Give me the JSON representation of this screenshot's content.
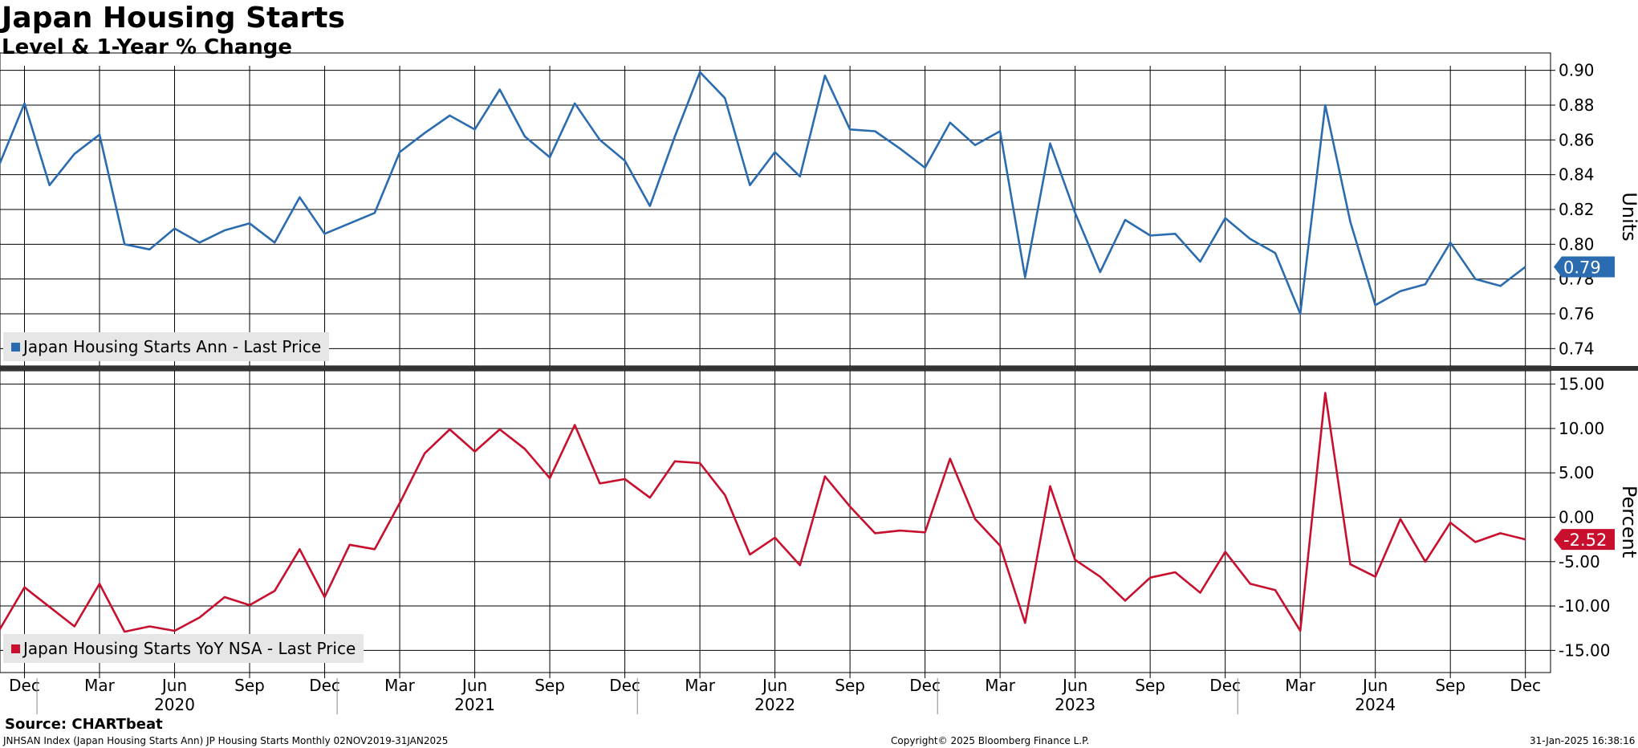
{
  "header": {
    "title": "Japan Housing Starts",
    "subtitle": "Level & 1-Year % Change"
  },
  "footer": {
    "source": "Source: CHARTbeat",
    "info": "JNHSAN Index (Japan Housing Starts Ann) JP Housing Starts  Monthly 02NOV2019-31JAN2025",
    "copyright": "Copyright© 2025 Bloomberg Finance L.P.",
    "timestamp": "31-Jan-2025 16:38:16"
  },
  "colors": {
    "blue": "#2b6cb0",
    "red": "#c8102e",
    "grid": "#000000",
    "legend_bg": "#e6e6e6"
  },
  "chart_data": [
    {
      "type": "line",
      "ylabel": "Units",
      "ylim": [
        0.73,
        0.91
      ],
      "yticks": [
        "0.90",
        "0.88",
        "0.86",
        "0.84",
        "0.82",
        "0.80",
        "0.78",
        "0.76",
        "0.74"
      ],
      "legend": "Japan Housing Starts Ann - Last Price",
      "last_value_label": "0.79",
      "x": [
        "2019-11",
        "2019-12",
        "2020-01",
        "2020-02",
        "2020-03",
        "2020-04",
        "2020-05",
        "2020-06",
        "2020-07",
        "2020-08",
        "2020-09",
        "2020-10",
        "2020-11",
        "2020-12",
        "2021-01",
        "2021-02",
        "2021-03",
        "2021-04",
        "2021-05",
        "2021-06",
        "2021-07",
        "2021-08",
        "2021-09",
        "2021-10",
        "2021-11",
        "2021-12",
        "2022-01",
        "2022-02",
        "2022-03",
        "2022-04",
        "2022-05",
        "2022-06",
        "2022-07",
        "2022-08",
        "2022-09",
        "2022-10",
        "2022-11",
        "2022-12",
        "2023-01",
        "2023-02",
        "2023-03",
        "2023-04",
        "2023-05",
        "2023-06",
        "2023-07",
        "2023-08",
        "2023-09",
        "2023-10",
        "2023-11",
        "2023-12",
        "2024-01",
        "2024-02",
        "2024-03",
        "2024-04",
        "2024-05",
        "2024-06",
        "2024-07",
        "2024-08",
        "2024-09",
        "2024-10",
        "2024-11",
        "2024-12"
      ],
      "series": [
        {
          "values": [
            0.846,
            0.881,
            0.834,
            0.852,
            0.863,
            0.8,
            0.797,
            0.809,
            0.801,
            0.808,
            0.812,
            0.801,
            0.827,
            0.806,
            0.812,
            0.818,
            0.853,
            0.864,
            0.874,
            0.866,
            0.889,
            0.862,
            0.85,
            0.881,
            0.86,
            0.848,
            0.822,
            0.862,
            0.899,
            0.884,
            0.834,
            0.853,
            0.839,
            0.897,
            0.866,
            0.865,
            0.855,
            0.844,
            0.87,
            0.857,
            0.865,
            0.781,
            0.858,
            0.818,
            0.784,
            0.814,
            0.805,
            0.806,
            0.79,
            0.815,
            0.803,
            0.795,
            0.76,
            0.88,
            0.813,
            0.765,
            0.773,
            0.777,
            0.801,
            0.78,
            0.776,
            0.787
          ]
        }
      ]
    },
    {
      "type": "line",
      "ylabel": "Percent",
      "ylim": [
        -17.5,
        16.5
      ],
      "yticks": [
        "15.00",
        "10.00",
        "5.00",
        "0.00",
        "-5.00",
        "-10.00",
        "-15.00"
      ],
      "legend": "Japan Housing Starts YoY NSA - Last Price",
      "last_value_label": "-2.52",
      "x": [
        "2019-11",
        "2019-12",
        "2020-01",
        "2020-02",
        "2020-03",
        "2020-04",
        "2020-05",
        "2020-06",
        "2020-07",
        "2020-08",
        "2020-09",
        "2020-10",
        "2020-11",
        "2020-12",
        "2021-01",
        "2021-02",
        "2021-03",
        "2021-04",
        "2021-05",
        "2021-06",
        "2021-07",
        "2021-08",
        "2021-09",
        "2021-10",
        "2021-11",
        "2021-12",
        "2022-01",
        "2022-02",
        "2022-03",
        "2022-04",
        "2022-05",
        "2022-06",
        "2022-07",
        "2022-08",
        "2022-09",
        "2022-10",
        "2022-11",
        "2022-12",
        "2023-01",
        "2023-02",
        "2023-03",
        "2023-04",
        "2023-05",
        "2023-06",
        "2023-07",
        "2023-08",
        "2023-09",
        "2023-10",
        "2023-11",
        "2023-12",
        "2024-01",
        "2024-02",
        "2024-03",
        "2024-04",
        "2024-05",
        "2024-06",
        "2024-07",
        "2024-08",
        "2024-09",
        "2024-10",
        "2024-11",
        "2024-12"
      ],
      "series": [
        {
          "values": [
            -12.7,
            -7.9,
            -10.1,
            -12.3,
            -7.5,
            -12.9,
            -12.3,
            -12.8,
            -11.3,
            -9.0,
            -9.9,
            -8.3,
            -3.6,
            -9.0,
            -3.1,
            -3.6,
            1.6,
            7.2,
            9.9,
            7.4,
            9.9,
            7.7,
            4.4,
            10.4,
            3.8,
            4.3,
            2.2,
            6.3,
            6.1,
            2.5,
            -4.2,
            -2.3,
            -5.4,
            4.6,
            1.2,
            -1.8,
            -1.5,
            -1.7,
            6.6,
            -0.2,
            -3.2,
            -11.9,
            3.5,
            -4.8,
            -6.7,
            -9.4,
            -6.8,
            -6.2,
            -8.5,
            -3.9,
            -7.5,
            -8.2,
            -12.8,
            14.0,
            -5.3,
            -6.7,
            -0.2,
            -5.0,
            -0.6,
            -2.8,
            -1.8,
            -2.5
          ]
        }
      ]
    }
  ],
  "x_axis": {
    "ticks": [
      {
        "date": "2019-12",
        "label": "Dec"
      },
      {
        "date": "2020-03",
        "label": "Mar"
      },
      {
        "date": "2020-06",
        "label": "Jun"
      },
      {
        "date": "2020-09",
        "label": "Sep"
      },
      {
        "date": "2020-12",
        "label": "Dec"
      },
      {
        "date": "2021-03",
        "label": "Mar"
      },
      {
        "date": "2021-06",
        "label": "Jun"
      },
      {
        "date": "2021-09",
        "label": "Sep"
      },
      {
        "date": "2021-12",
        "label": "Dec"
      },
      {
        "date": "2022-03",
        "label": "Mar"
      },
      {
        "date": "2022-06",
        "label": "Jun"
      },
      {
        "date": "2022-09",
        "label": "Sep"
      },
      {
        "date": "2022-12",
        "label": "Dec"
      },
      {
        "date": "2023-03",
        "label": "Mar"
      },
      {
        "date": "2023-06",
        "label": "Jun"
      },
      {
        "date": "2023-09",
        "label": "Sep"
      },
      {
        "date": "2023-12",
        "label": "Dec"
      },
      {
        "date": "2024-03",
        "label": "Mar"
      },
      {
        "date": "2024-06",
        "label": "Jun"
      },
      {
        "date": "2024-09",
        "label": "Sep"
      },
      {
        "date": "2024-12",
        "label": "Dec"
      }
    ],
    "years": [
      {
        "date": "2020-06",
        "label": "2020"
      },
      {
        "date": "2021-06",
        "label": "2021"
      },
      {
        "date": "2022-06",
        "label": "2022"
      },
      {
        "date": "2023-06",
        "label": "2023"
      },
      {
        "date": "2024-06",
        "label": "2024"
      }
    ]
  }
}
